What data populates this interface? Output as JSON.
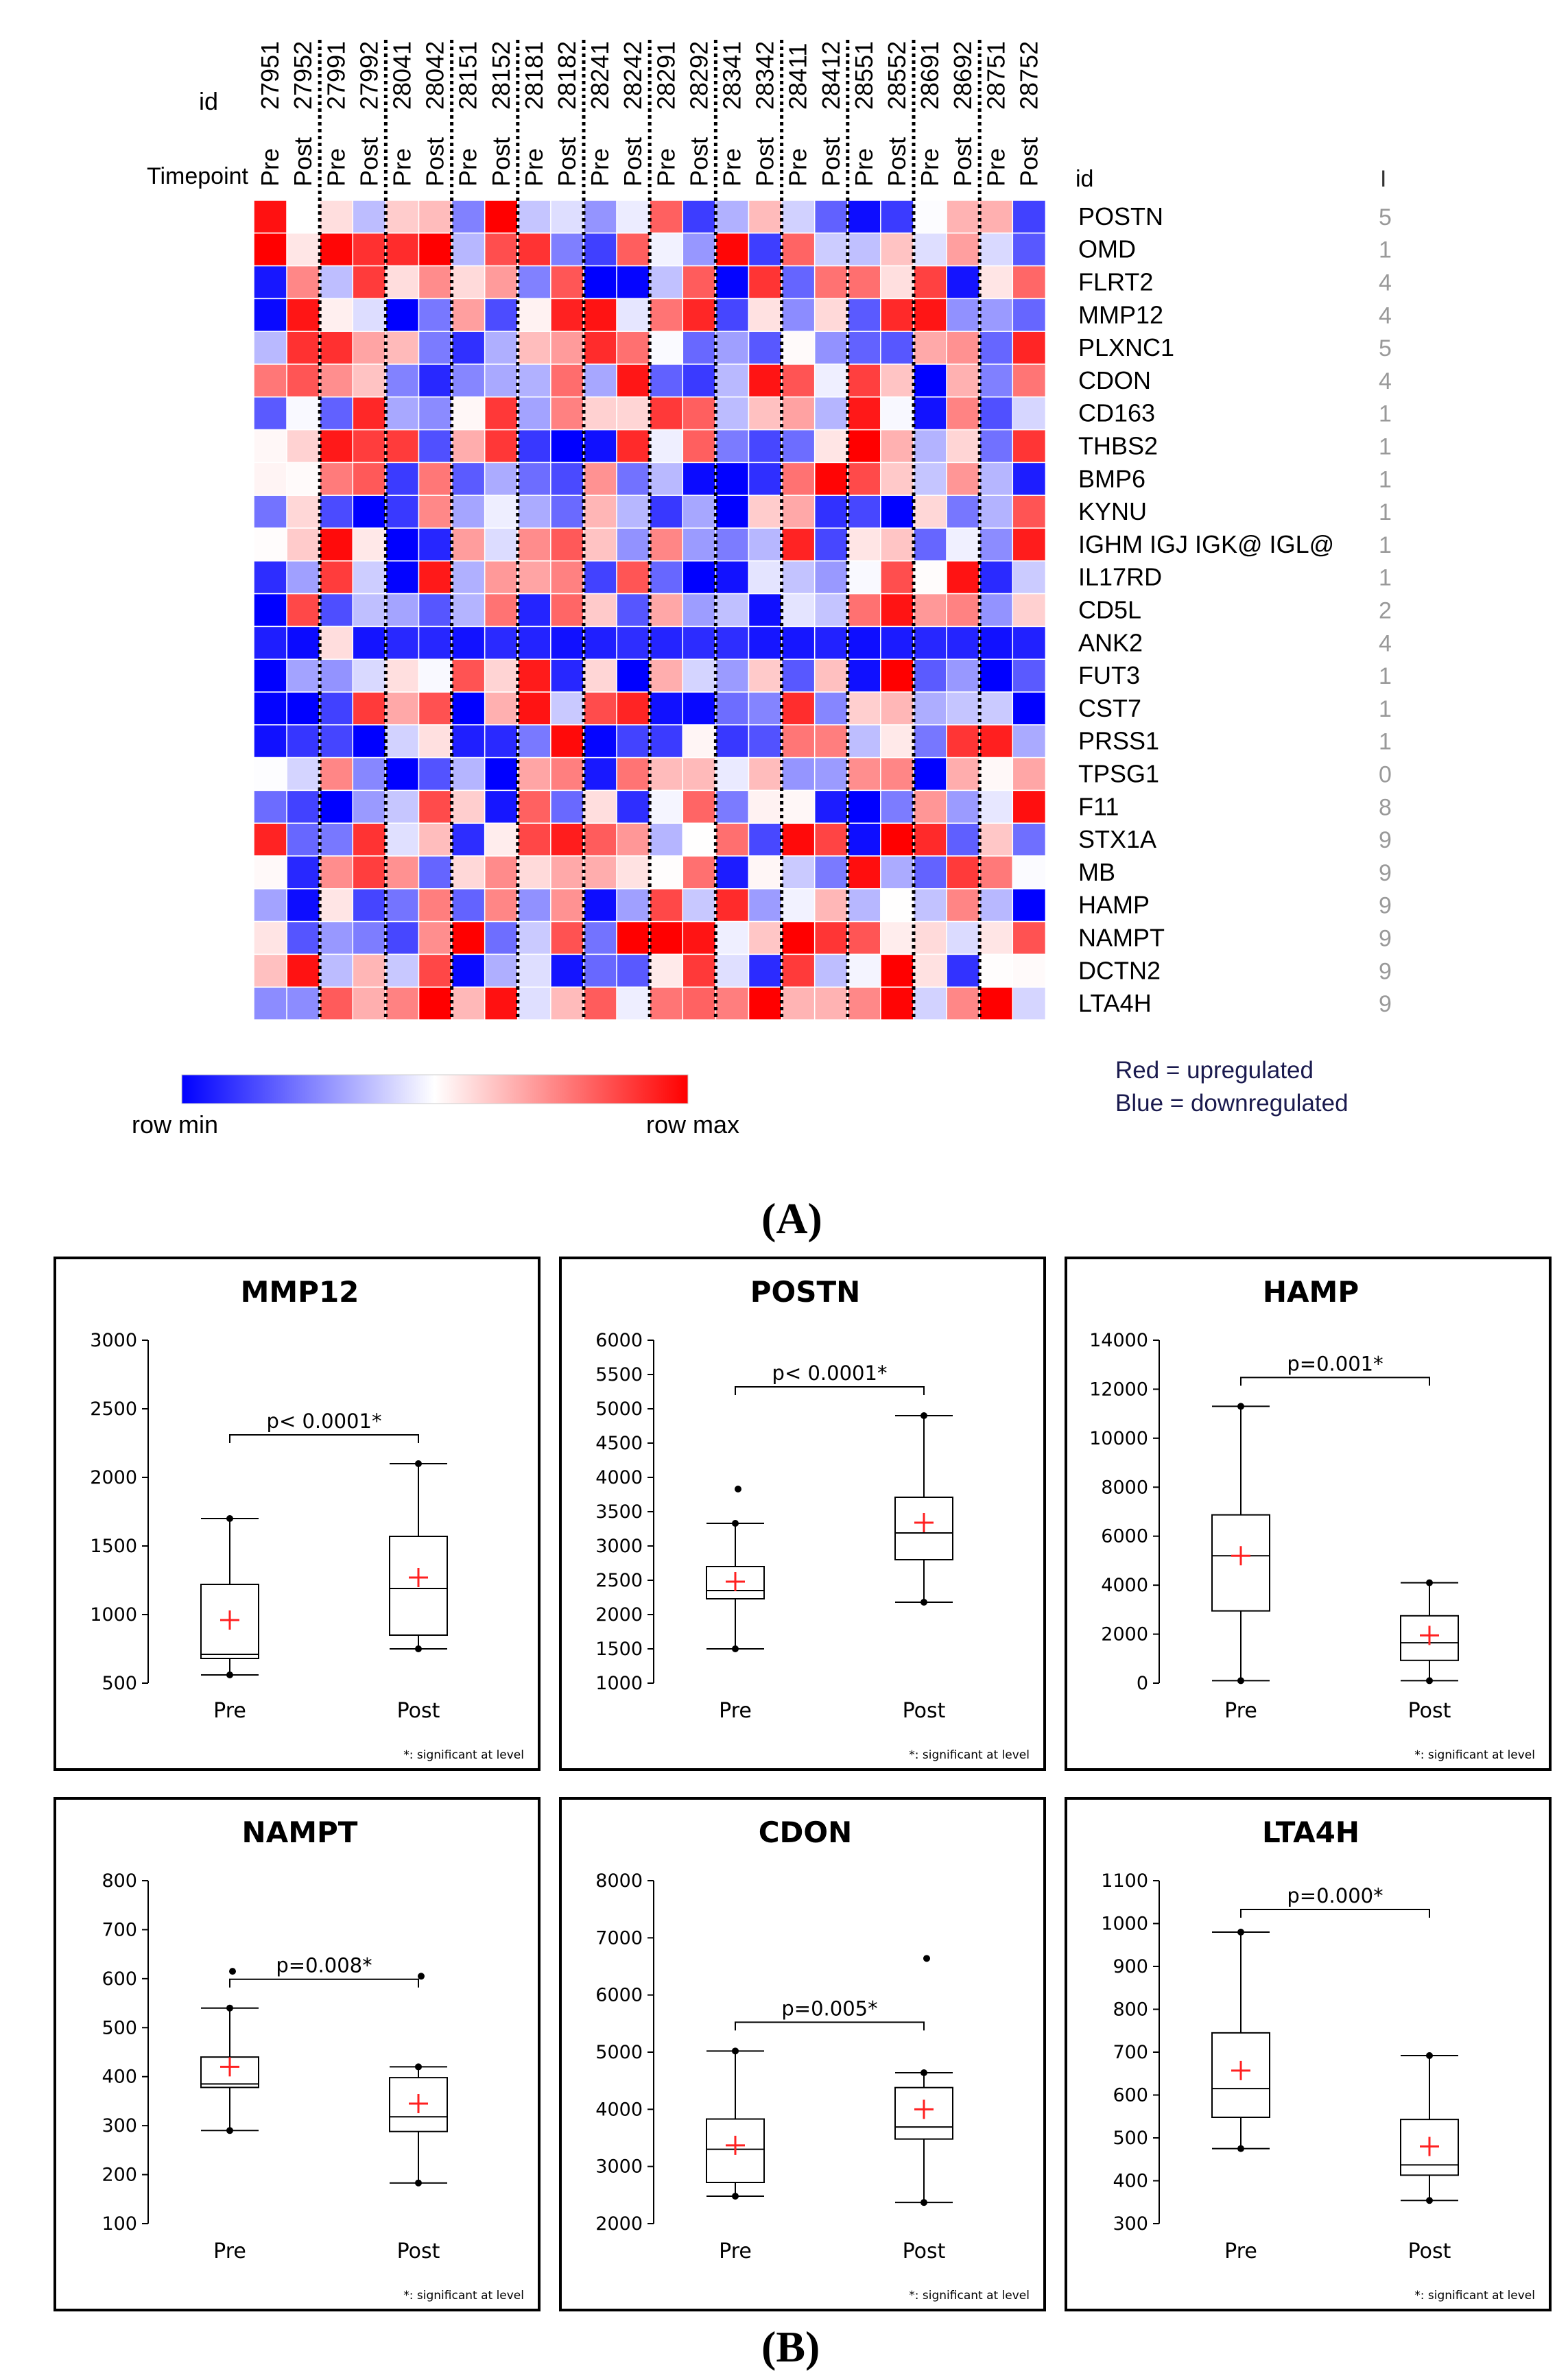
{
  "panel_labels": {
    "a": "(A)",
    "b": "(B)"
  },
  "heatmap": {
    "id_label": "id",
    "timepoint_label": "Timepoint",
    "right_id_header": "id",
    "right_clip_header": "I",
    "sample_ids": [
      "27951",
      "27952",
      "27991",
      "27992",
      "28041",
      "28042",
      "28151",
      "28152",
      "28181",
      "28182",
      "28241",
      "28242",
      "28291",
      "28292",
      "28341",
      "28342",
      "28411",
      "28412",
      "28551",
      "28552",
      "28691",
      "28692",
      "28751",
      "28752"
    ],
    "timepoints": [
      "Pre",
      "Post",
      "Pre",
      "Post",
      "Pre",
      "Post",
      "Pre",
      "Post",
      "Pre",
      "Post",
      "Pre",
      "Post",
      "Pre",
      "Post",
      "Pre",
      "Post",
      "Pre",
      "Post",
      "Pre",
      "Post",
      "Pre",
      "Post",
      "Pre",
      "Post"
    ],
    "genes": [
      "POSTN",
      "OMD",
      "FLRT2",
      "MMP12",
      "PLXNC1",
      "CDON",
      "CD163",
      "THBS2",
      "BMP6",
      "KYNU",
      "IGHM IGJ IGK@ IGL@",
      "IL17RD",
      "CD5L",
      "ANK2",
      "FUT3",
      "CST7",
      "PRSS1",
      "TPSG1",
      "F11",
      "STX1A",
      "MB",
      "HAMP",
      "NAMPT",
      "DCTN2",
      "LTA4H"
    ],
    "clipped_values": [
      "5",
      "1",
      "4",
      "4",
      "5",
      "4",
      "1",
      "1",
      "1",
      "1",
      "1",
      "1",
      "2",
      "4",
      "1",
      "1",
      "1",
      "0",
      "8",
      "9",
      "9",
      "9",
      "9",
      "9",
      "9"
    ],
    "legend": {
      "min_label": "row min",
      "max_label": "row max",
      "note_red": "Red = upregulated",
      "note_blue": "Blue = downregulated"
    },
    "colors": {
      "min": "#0000ff",
      "mid": "#ffffff",
      "max": "#ff0000"
    }
  },
  "chart_data": [
    {
      "type": "box",
      "title": "MMP12",
      "categories": [
        "Pre",
        "Post"
      ],
      "ylim": [
        500,
        3000
      ],
      "yticks": [
        "500",
        "1000",
        "1500",
        "2000",
        "2500",
        "3000"
      ],
      "boxes": [
        {
          "min": 560,
          "q1": 680,
          "median": 710,
          "q3": 1220,
          "max": 1700,
          "mean": 960,
          "outliers": []
        },
        {
          "min": 750,
          "q1": 850,
          "median": 1190,
          "q3": 1570,
          "max": 2100,
          "mean": 1270,
          "outliers": []
        }
      ],
      "significance": "p< 0.0001*",
      "footnote": "*: significant at level"
    },
    {
      "type": "box",
      "title": "POSTN",
      "categories": [
        "Pre",
        "Post"
      ],
      "ylim": [
        1000,
        6000
      ],
      "yticks": [
        "1000",
        "1500",
        "2000",
        "2500",
        "3000",
        "3500",
        "4000",
        "4500",
        "5000",
        "5500",
        "6000"
      ],
      "boxes": [
        {
          "min": 1500,
          "q1": 2230,
          "median": 2350,
          "q3": 2700,
          "max": 3330,
          "mean": 2480,
          "outliers": [
            3830
          ]
        },
        {
          "min": 2180,
          "q1": 2800,
          "median": 3190,
          "q3": 3710,
          "max": 4900,
          "mean": 3340,
          "outliers": []
        }
      ],
      "significance": "p< 0.0001*",
      "footnote": "*: significant at level"
    },
    {
      "type": "box",
      "title": "HAMP",
      "categories": [
        "Pre",
        "Post"
      ],
      "ylim": [
        0,
        14000
      ],
      "yticks": [
        "0",
        "2000",
        "4000",
        "6000",
        "8000",
        "10000",
        "12000",
        "14000"
      ],
      "boxes": [
        {
          "min": 100,
          "q1": 2950,
          "median": 5200,
          "q3": 6870,
          "max": 11300,
          "mean": 5200,
          "outliers": []
        },
        {
          "min": 100,
          "q1": 930,
          "median": 1650,
          "q3": 2750,
          "max": 4100,
          "mean": 1950,
          "outliers": []
        }
      ],
      "significance": "p=0.001*",
      "footnote": "*: significant at level"
    },
    {
      "type": "box",
      "title": "NAMPT",
      "categories": [
        "Pre",
        "Post"
      ],
      "ylim": [
        100,
        800
      ],
      "yticks": [
        "100",
        "200",
        "300",
        "400",
        "500",
        "600",
        "700",
        "800"
      ],
      "boxes": [
        {
          "min": 290,
          "q1": 378,
          "median": 385,
          "q3": 440,
          "max": 540,
          "mean": 420,
          "outliers": [
            615
          ]
        },
        {
          "min": 183,
          "q1": 288,
          "median": 318,
          "q3": 398,
          "max": 420,
          "mean": 345,
          "outliers": [
            605
          ]
        }
      ],
      "significance": "p=0.008*",
      "footnote": "*: significant at level"
    },
    {
      "type": "box",
      "title": "CDON",
      "categories": [
        "Pre",
        "Post"
      ],
      "ylim": [
        2000,
        8000
      ],
      "yticks": [
        "2000",
        "3000",
        "4000",
        "5000",
        "6000",
        "7000",
        "8000"
      ],
      "boxes": [
        {
          "min": 2480,
          "q1": 2720,
          "median": 3300,
          "q3": 3830,
          "max": 5020,
          "mean": 3370,
          "outliers": []
        },
        {
          "min": 2370,
          "q1": 3480,
          "median": 3690,
          "q3": 4380,
          "max": 4640,
          "mean": 4000,
          "outliers": [
            6640
          ]
        }
      ],
      "significance": "p=0.005*",
      "footnote": "*: significant at level"
    },
    {
      "type": "box",
      "title": "LTA4H",
      "categories": [
        "Pre",
        "Post"
      ],
      "ylim": [
        300,
        1100
      ],
      "yticks": [
        "300",
        "400",
        "500",
        "600",
        "700",
        "800",
        "900",
        "1000",
        "1100"
      ],
      "boxes": [
        {
          "min": 475,
          "q1": 548,
          "median": 615,
          "q3": 745,
          "max": 980,
          "mean": 657,
          "outliers": []
        },
        {
          "min": 354,
          "q1": 413,
          "median": 437,
          "q3": 543,
          "max": 692,
          "mean": 480,
          "outliers": []
        }
      ],
      "significance": "p=0.000*",
      "footnote": "*: significant at level"
    }
  ]
}
